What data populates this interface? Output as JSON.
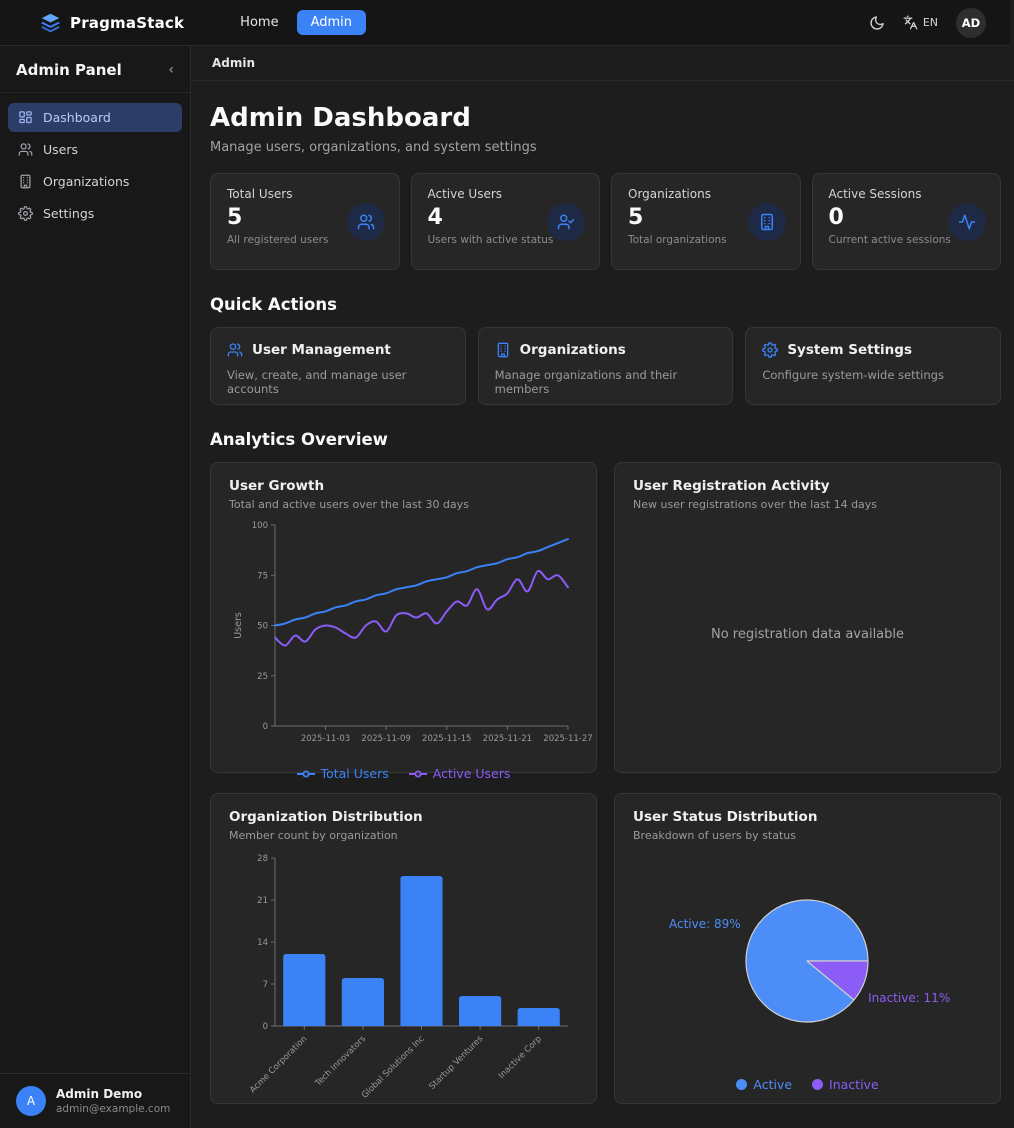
{
  "navbar": {
    "brand": "PragmaStack",
    "brand_icon": "layers-icon",
    "links": {
      "home": "Home",
      "admin": "Admin"
    },
    "theme_icon": "moon-icon",
    "language_icon": "translate-icon",
    "language": "EN",
    "avatar_initials": "AD"
  },
  "sidebar": {
    "title": "Admin Panel",
    "collapse_icon": "chevron-left-icon",
    "collapse_glyph": "‹",
    "items": [
      {
        "label": "Dashboard",
        "icon": "dashboard-icon",
        "active": true
      },
      {
        "label": "Users",
        "icon": "users-icon",
        "active": false
      },
      {
        "label": "Organizations",
        "icon": "building-icon",
        "active": false
      },
      {
        "label": "Settings",
        "icon": "gear-icon",
        "active": false
      }
    ],
    "user": {
      "initial": "A",
      "name": "Admin Demo",
      "email": "admin@example.com"
    }
  },
  "breadcrumb": "Admin",
  "page": {
    "title": "Admin Dashboard",
    "subtitle": "Manage users, organizations, and system settings"
  },
  "stats": [
    {
      "label": "Total Users",
      "value": "5",
      "description": "All registered users",
      "icon": "users-icon"
    },
    {
      "label": "Active Users",
      "value": "4",
      "description": "Users with active status",
      "icon": "user-check-icon"
    },
    {
      "label": "Organizations",
      "value": "5",
      "description": "Total organizations",
      "icon": "building-icon"
    },
    {
      "label": "Active Sessions",
      "value": "0",
      "description": "Current active sessions",
      "icon": "activity-icon"
    }
  ],
  "sections": {
    "quick_actions": "Quick Actions",
    "analytics": "Analytics Overview"
  },
  "quick_actions": [
    {
      "title": "User Management",
      "description": "View, create, and manage user accounts",
      "icon": "users-icon"
    },
    {
      "title": "Organizations",
      "description": "Manage organizations and their members",
      "icon": "building-icon"
    },
    {
      "title": "System Settings",
      "description": "Configure system-wide settings",
      "icon": "gear-icon"
    }
  ],
  "colors": {
    "accent_blue": "#3b82f6",
    "line_purple": "#8b5cf6",
    "pie_blue": "#4d8df7",
    "pie_purple": "#8b5cf6",
    "axis_gray": "#9a9a9a",
    "spine_gray": "#6e6e6e",
    "card_bg": "#262626"
  },
  "chart_data": [
    {
      "type": "line",
      "title": "User Growth",
      "subtitle": "Total and active users over the last 30 days",
      "ylabel": "Users",
      "ylim": [
        0,
        100
      ],
      "yticks": [
        0,
        25,
        50,
        75,
        100
      ],
      "n_points": 30,
      "x_tick_labels": [
        "2025-11-03",
        "2025-11-09",
        "2025-11-15",
        "2025-11-21",
        "2025-11-27"
      ],
      "x_tick_positions": [
        5,
        11,
        17,
        23,
        29
      ],
      "legend_position": "bottom",
      "grid": false,
      "series": [
        {
          "name": "Total Users",
          "color": "#3b82f6",
          "values": [
            50,
            51,
            53,
            54,
            56,
            57,
            59,
            60,
            62,
            63,
            65,
            66,
            68,
            69,
            70,
            72,
            73,
            74,
            76,
            77,
            79,
            80,
            81,
            83,
            84,
            86,
            87,
            89,
            91,
            93
          ]
        },
        {
          "name": "Active Users",
          "color": "#8b5cf6",
          "values": [
            44,
            40,
            45,
            42,
            48,
            50,
            49,
            46,
            44,
            50,
            52,
            47,
            55,
            56,
            54,
            56,
            51,
            57,
            62,
            60,
            68,
            58,
            63,
            66,
            73,
            67,
            77,
            73,
            75,
            69
          ]
        }
      ]
    },
    {
      "type": "line",
      "title": "User Registration Activity",
      "subtitle": "New user registrations over the last 14 days",
      "empty_message": "No registration data available",
      "series": []
    },
    {
      "type": "bar",
      "title": "Organization Distribution",
      "subtitle": "Member count by organization",
      "categories": [
        "Acme Corporation",
        "Tech Innovators",
        "Global Solutions Inc",
        "Startup Ventures",
        "Inactive Corp"
      ],
      "values": [
        12,
        8,
        25,
        5,
        3
      ],
      "bar_color": "#3b82f6",
      "ylim": [
        0,
        28
      ],
      "yticks": [
        0,
        7,
        14,
        21,
        28
      ],
      "grid": false
    },
    {
      "type": "pie",
      "title": "User Status Distribution",
      "subtitle": "Breakdown of users by status",
      "slices": [
        {
          "label": "Active",
          "pct": 89,
          "color": "#4d8df7",
          "label_text": "Active: 89%"
        },
        {
          "label": "Inactive",
          "pct": 11,
          "color": "#8b5cf6",
          "label_text": "Inactive: 11%"
        }
      ],
      "legend_position": "bottom"
    }
  ]
}
